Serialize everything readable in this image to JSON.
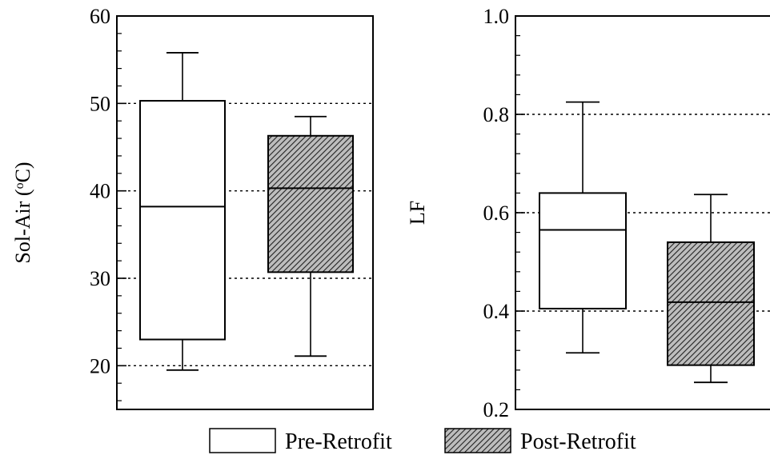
{
  "chart_data": [
    {
      "type": "box",
      "ylabel_main": "Sol-Air (",
      "ylabel_sup": "o",
      "ylabel_end": "C)",
      "ylim": [
        15,
        60
      ],
      "yticks": [
        20,
        30,
        40,
        50,
        60
      ],
      "grid_lines": [
        20,
        30,
        40,
        50
      ],
      "boxes": [
        {
          "series": "Pre-Retrofit",
          "whisker_low": 19.5,
          "q1": 23,
          "median": 38.2,
          "q3": 50.3,
          "whisker_high": 55.8
        },
        {
          "series": "Post-Retrofit",
          "whisker_low": 21.1,
          "q1": 30.7,
          "median": 40.3,
          "q3": 46.3,
          "whisker_high": 48.5
        }
      ]
    },
    {
      "type": "box",
      "ylabel": "LF",
      "ylim": [
        0.2,
        1.0
      ],
      "yticks": [
        "0.2",
        "0.4",
        "0.6",
        "0.8",
        "1.0"
      ],
      "grid_lines": [
        0.4,
        0.6,
        0.8
      ],
      "boxes": [
        {
          "series": "Pre-Retrofit",
          "whisker_low": 0.315,
          "q1": 0.405,
          "median": 0.565,
          "q3": 0.64,
          "whisker_high": 0.825
        },
        {
          "series": "Post-Retrofit",
          "whisker_low": 0.255,
          "q1": 0.29,
          "median": 0.418,
          "q3": 0.54,
          "whisker_high": 0.637
        }
      ]
    }
  ],
  "legend": {
    "items": [
      {
        "label": "Pre-Retrofit",
        "fill": "#ffffff"
      },
      {
        "label": "Post-Retrofit",
        "fill": "hatched"
      }
    ]
  },
  "colors": {
    "axis": "#000000",
    "grid": "#000000",
    "hatch_bg": "#bdbdbd"
  }
}
